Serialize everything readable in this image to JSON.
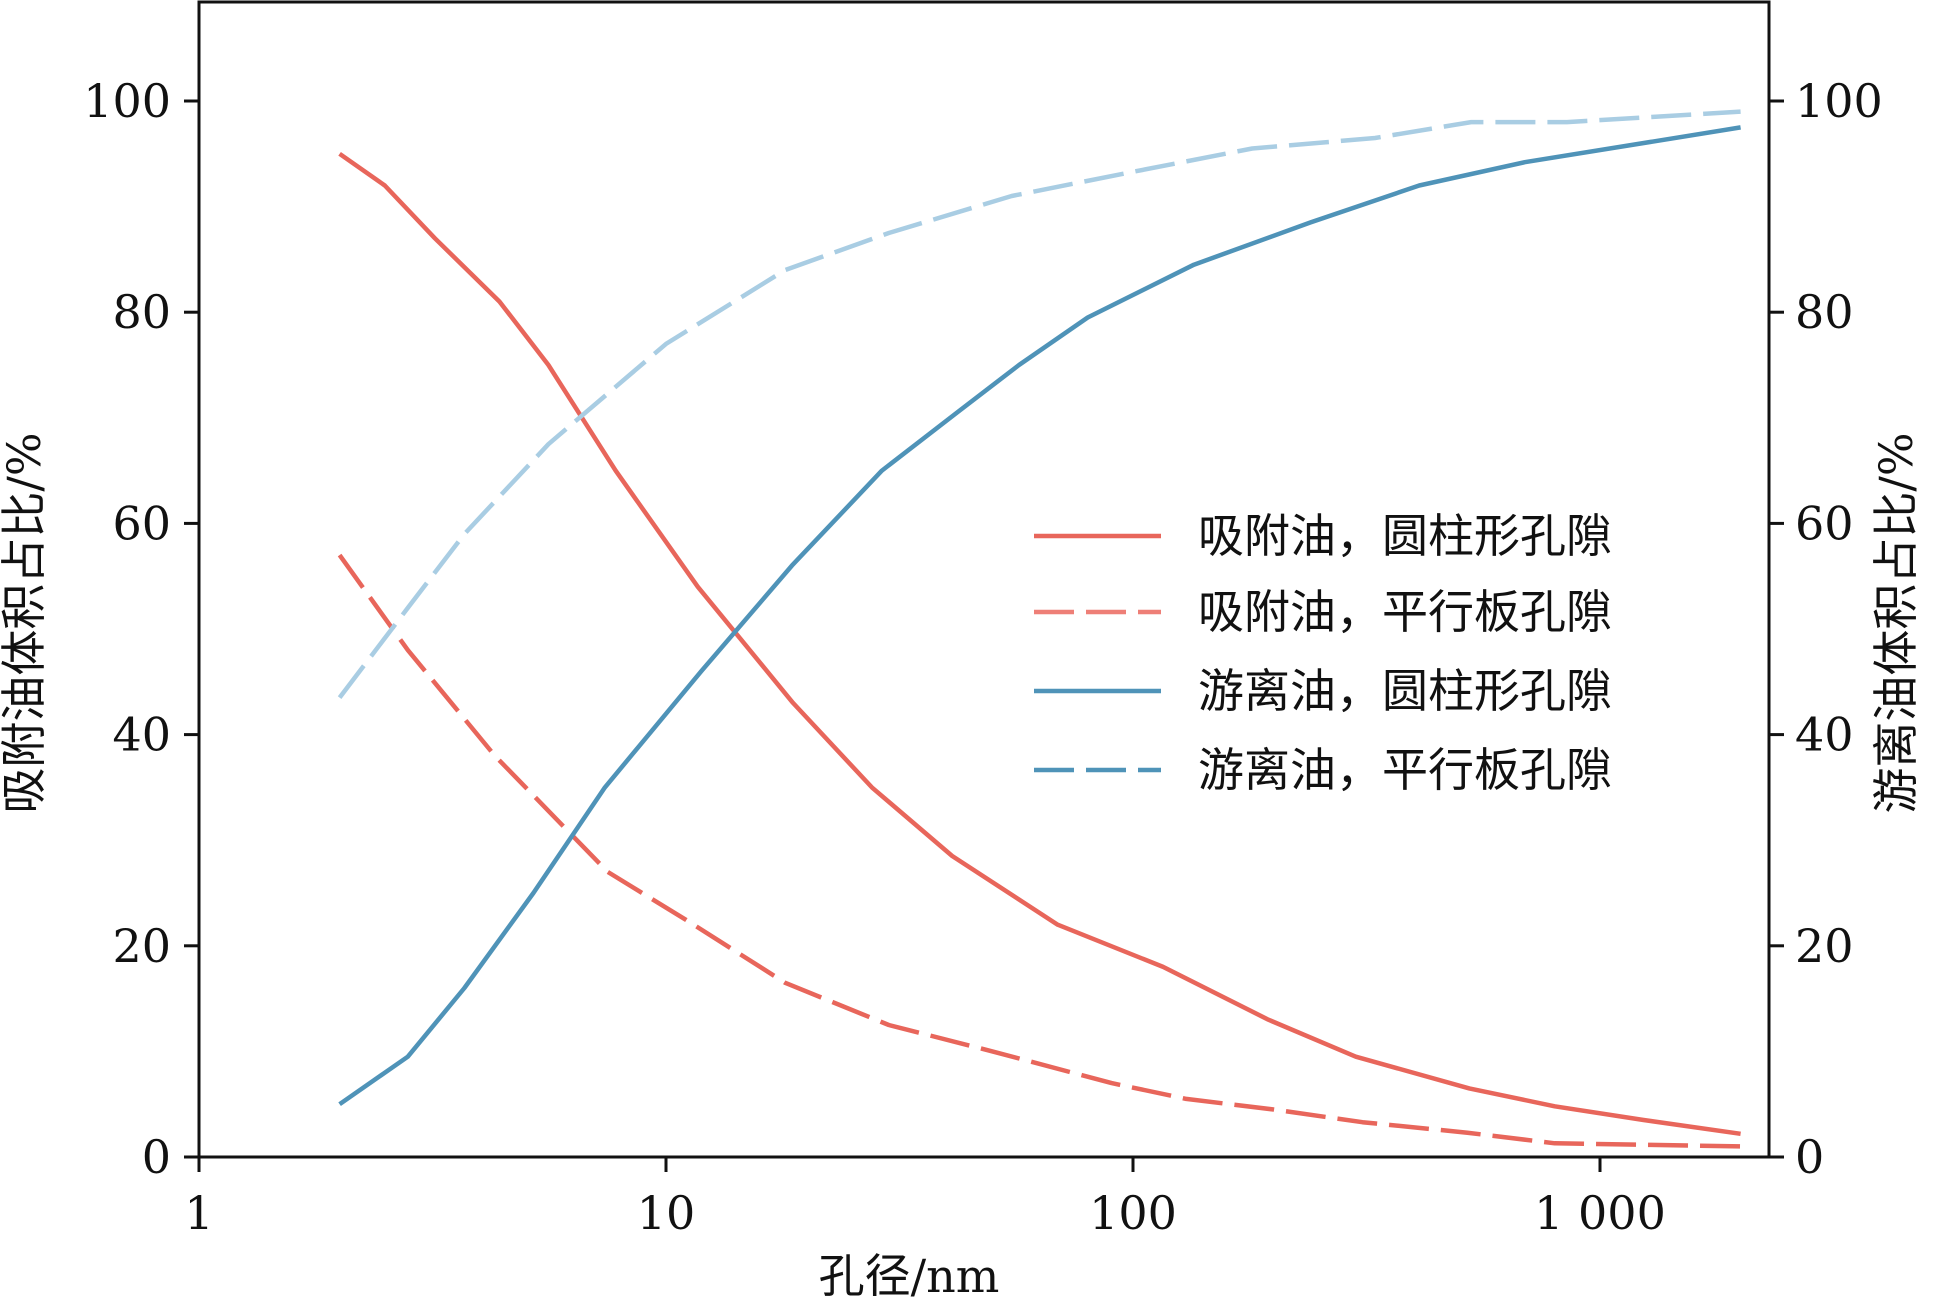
{
  "chart_data": {
    "type": "line",
    "title": "",
    "xlabel": "孔径/nm",
    "ylabel_left": "吸附油体积占比/%",
    "ylabel_right": "游离油体积占比/%",
    "xscale": "log",
    "xlim": [
      1,
      2200
    ],
    "ylim_left": [
      0,
      110
    ],
    "ylim_right": [
      0,
      110
    ],
    "x_ticks": [
      1,
      10,
      100,
      1000
    ],
    "x_tick_labels": [
      "1",
      "10",
      "100",
      "1 000"
    ],
    "y_ticks": [
      0,
      20,
      40,
      60,
      80,
      100
    ],
    "y_tick_labels": [
      "0",
      "20",
      "40",
      "60",
      "80",
      "100"
    ],
    "grid": false,
    "legend_position": "center-right",
    "series": [
      {
        "name": "吸附油，圆柱形孔隙",
        "axis": "left",
        "style": "solid",
        "color": "#e8665b",
        "legend_color": "#e8665b",
        "x": [
          2,
          2.5,
          3.2,
          4.4,
          5.6,
          7.8,
          11.7,
          18.7,
          27.6,
          41,
          69,
          116,
          195,
          300,
          525,
          800,
          1240,
          2000
        ],
        "y": [
          95,
          92,
          87,
          81,
          75,
          65,
          54,
          43,
          35,
          28.5,
          22,
          18,
          13,
          9.5,
          6.5,
          4.8,
          3.5,
          2.2
        ]
      },
      {
        "name": "吸附油，平行板孔隙",
        "axis": "left",
        "style": "dashed",
        "color": "#e8665b",
        "legend_color": "#ee7f77",
        "x": [
          2,
          2.8,
          4.3,
          7.5,
          11,
          18,
          30,
          50,
          90,
          130,
          200,
          310,
          520,
          800,
          2000
        ],
        "y": [
          57,
          48,
          38,
          27,
          22.5,
          16.5,
          12.5,
          10,
          7,
          5.5,
          4.5,
          3.3,
          2.3,
          1.3,
          1
        ]
      },
      {
        "name": "游离油，圆柱形孔隙",
        "axis": "right",
        "style": "solid",
        "color": "#4f93b8",
        "legend_color": "#4f93b8",
        "x": [
          2,
          2.8,
          3.7,
          5.2,
          7.4,
          11.9,
          18.6,
          29,
          42,
          57,
          80,
          135,
          240,
          410,
          690,
          2000
        ],
        "y": [
          5,
          9.5,
          16,
          25,
          35,
          46,
          56,
          65,
          70.5,
          75,
          79.5,
          84.5,
          88.5,
          92,
          94.2,
          97.5
        ]
      },
      {
        "name": "游离油，平行板孔隙",
        "axis": "right",
        "style": "dashed",
        "color": "#a9cde3",
        "legend_color": "#4f93b8",
        "x": [
          2,
          2.8,
          3.7,
          5.6,
          10,
          18,
          30,
          55,
          100,
          180,
          330,
          530,
          850,
          2000
        ],
        "y": [
          43.5,
          52,
          59,
          67.5,
          77,
          84,
          87.5,
          91,
          93.3,
          95.5,
          96.5,
          98,
          98,
          99
        ]
      }
    ]
  }
}
